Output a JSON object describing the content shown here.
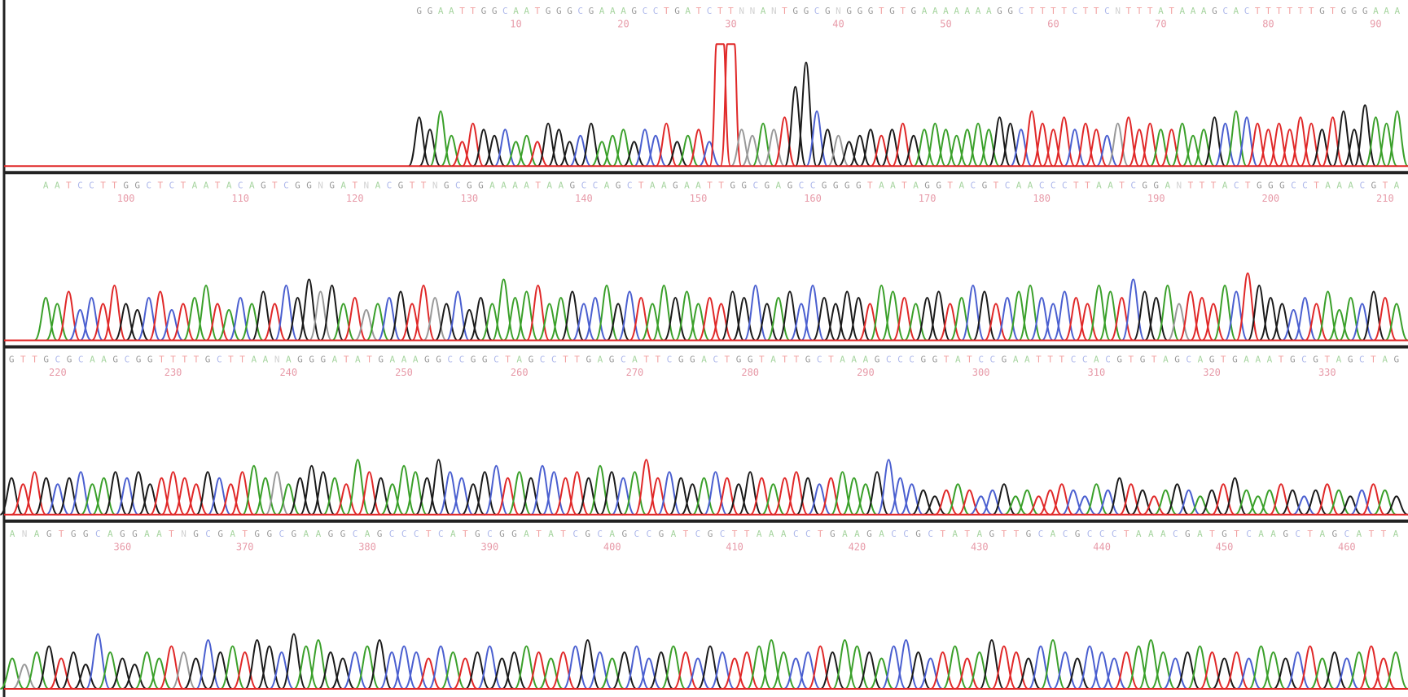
{
  "base_colors": {
    "A": "#3aa02a",
    "C": "#4a5fd0",
    "G": "#1a1a1a",
    "T": "#e02828",
    "N": "#999999"
  },
  "chart_data": [
    {
      "type": "chromatogram",
      "start": 1,
      "xlim": [
        -38,
        93
      ],
      "ylim": [
        0,
        100
      ],
      "xticks": [
        10,
        20,
        30,
        40,
        50,
        60,
        70,
        80,
        90
      ],
      "sequence": "GGAATTGGCAATGGGCGAAAGCCTGATCTTNNANTGGCGNGGGTGTGAAAAAAAGGCTTTTCTTCNTTTATAAAGCACTTTTTTGTGGGAAA",
      "values": [
        40,
        30,
        45,
        25,
        20,
        35,
        30,
        25,
        30,
        20,
        25,
        20,
        35,
        30,
        20,
        25,
        35,
        20,
        25,
        30,
        20,
        30,
        25,
        35,
        20,
        25,
        30,
        20,
        100,
        100,
        30,
        25,
        35,
        30,
        40,
        65,
        85,
        45,
        30,
        25,
        20,
        25,
        30,
        25,
        30,
        35,
        25,
        30,
        35,
        30,
        25,
        30,
        35,
        30,
        40,
        35,
        30,
        45,
        35,
        30,
        40,
        30,
        35,
        30,
        25,
        35,
        40,
        30,
        35,
        30,
        30,
        35,
        25,
        30,
        40,
        35,
        45,
        40,
        35,
        30,
        35,
        30,
        40,
        35,
        30,
        40,
        45,
        30,
        50,
        40,
        35,
        45
      ]
    },
    {
      "type": "chromatogram",
      "start": 93,
      "xlim": [
        89,
        212
      ],
      "ylim": [
        0,
        100
      ],
      "xticks": [
        100,
        110,
        120,
        130,
        140,
        150,
        160,
        170,
        180,
        190,
        200,
        210
      ],
      "sequence": "AATCCTTGGCTCTAATACAGTCGGNGATNACGTTNGCGGAAAATAAGCCAGCTAAGAATTGGCGAGCCGGGGTAATAGGTACGTCAACCCTTAATCGGANTTTACTGGGCCTAAACGTA",
      "values": [
        35,
        30,
        40,
        25,
        35,
        30,
        45,
        30,
        25,
        35,
        40,
        25,
        30,
        35,
        45,
        30,
        25,
        35,
        30,
        40,
        30,
        45,
        35,
        50,
        40,
        45,
        30,
        35,
        25,
        30,
        35,
        40,
        30,
        45,
        35,
        30,
        40,
        25,
        35,
        30,
        50,
        35,
        40,
        45,
        30,
        35,
        40,
        30,
        35,
        45,
        30,
        40,
        35,
        30,
        45,
        35,
        40,
        30,
        35,
        30,
        40,
        35,
        45,
        30,
        35,
        40,
        30,
        45,
        35,
        30,
        40,
        35,
        30,
        45,
        40,
        35,
        30,
        35,
        40,
        30,
        35,
        45,
        40,
        30,
        35,
        40,
        45,
        35,
        30,
        40,
        35,
        30,
        45,
        40,
        35,
        50,
        40,
        35,
        45,
        30,
        40,
        35,
        30,
        45,
        40,
        55,
        45,
        35,
        30,
        25,
        35,
        30,
        40,
        25,
        35,
        30,
        40,
        35,
        30
      ]
    },
    {
      "type": "chromatogram",
      "start": 216,
      "xlim": [
        215,
        337
      ],
      "ylim": [
        0,
        100
      ],
      "xticks": [
        220,
        230,
        240,
        250,
        260,
        270,
        280,
        290,
        300,
        310,
        320,
        330
      ],
      "sequence": "GTTGCGCAAGCGGTTTTGCTTAANAGGGATATGAAAGGCCGGCTAGCCTTGAGCATTCGGACTGGTATTGCTAAAGCCCGGTATCCGAATTTCCACGTGTAGCAGTGAAATGCGTAGCTAG",
      "values": [
        30,
        25,
        35,
        30,
        25,
        30,
        35,
        25,
        30,
        35,
        30,
        35,
        25,
        30,
        35,
        30,
        25,
        35,
        30,
        25,
        35,
        40,
        30,
        35,
        25,
        30,
        40,
        35,
        30,
        25,
        45,
        35,
        30,
        25,
        40,
        35,
        30,
        45,
        35,
        30,
        25,
        35,
        40,
        30,
        35,
        30,
        40,
        35,
        30,
        35,
        30,
        40,
        35,
        30,
        35,
        45,
        30,
        35,
        30,
        25,
        30,
        35,
        30,
        25,
        35,
        30,
        25,
        30,
        35,
        30,
        25,
        30,
        35,
        30,
        25,
        35,
        45,
        30,
        25,
        20,
        15,
        20,
        25,
        20,
        15,
        20,
        25,
        15,
        20,
        15,
        20,
        25,
        20,
        15,
        25,
        20,
        30,
        25,
        20,
        15,
        20,
        25,
        20,
        15,
        20,
        25,
        30,
        20,
        15,
        20,
        25,
        20,
        15,
        20,
        25,
        20,
        15,
        20,
        25,
        20,
        15
      ]
    },
    {
      "type": "chromatogram",
      "start": 351,
      "xlim": [
        350,
        465
      ],
      "ylim": [
        0,
        100
      ],
      "xticks": [
        360,
        370,
        380,
        390,
        400,
        410,
        420,
        430,
        440,
        450,
        460
      ],
      "sequence": "ANAGTGGCAGGAATNGCGATGGCGAAGGCAGCCCTCATGCGGATATCGCAGCCGATCGCTTAAACCTGAAGACCGCTATAGTTGCACGCCCTAAACGATGTCAAGCTAGCATTA",
      "values": [
        25,
        20,
        30,
        35,
        25,
        30,
        20,
        45,
        30,
        25,
        20,
        30,
        25,
        35,
        30,
        25,
        40,
        30,
        35,
        30,
        40,
        35,
        30,
        45,
        35,
        40,
        30,
        25,
        30,
        35,
        40,
        30,
        35,
        30,
        25,
        35,
        30,
        25,
        30,
        35,
        25,
        30,
        35,
        30,
        25,
        30,
        35,
        40,
        30,
        25,
        30,
        35,
        25,
        30,
        35,
        30,
        25,
        35,
        30,
        25,
        30,
        35,
        40,
        30,
        25,
        30,
        35,
        30,
        40,
        35,
        30,
        25,
        35,
        40,
        30,
        25,
        30,
        35,
        25,
        30,
        40,
        35,
        30,
        25,
        35,
        40,
        30,
        25,
        35,
        30,
        25,
        30,
        35,
        40,
        30,
        25,
        30,
        35,
        30,
        25,
        30,
        25,
        35,
        30,
        25,
        30,
        35,
        25,
        30,
        25,
        30,
        35,
        25,
        30
      ]
    }
  ]
}
